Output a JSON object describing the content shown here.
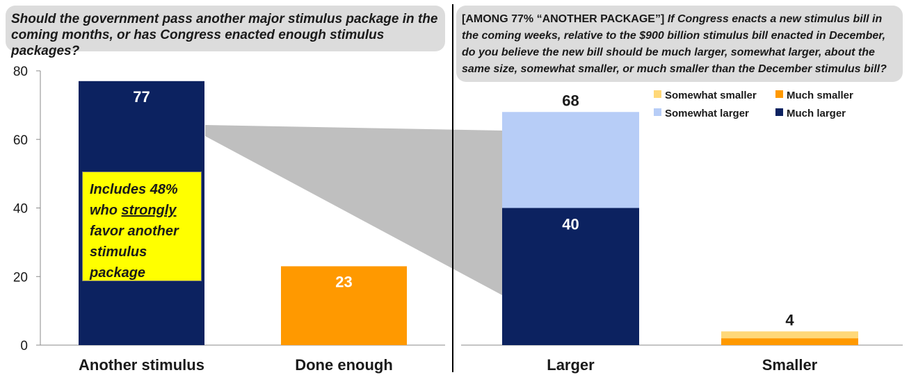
{
  "left_question": "Should the government pass another major stimulus package in the coming months, or has Congress enacted enough stimulus packages?",
  "right_question_prefix": "[AMONG 77% “ANOTHER PACKAGE”]",
  "right_question": "If Congress enacts a new stimulus bill in the coming weeks,  relative to the $900 billion stimulus bill enacted in December, do you believe the new bill should be much larger, somewhat larger, about the same size, somewhat smaller, or much smaller than the December stimulus bill?",
  "callout": {
    "before": "Includes 48% who ",
    "emph": "strongly",
    "after": " favor another stimulus package"
  },
  "colors": {
    "navy": "#0c2260",
    "orange": "#ff9900",
    "light_blue": "#b7cdf7",
    "light_yellow": "#ffd878",
    "funnel": "#bfbfbf"
  },
  "chart_data": [
    {
      "type": "bar",
      "categories": [
        "Another stimulus",
        "Done enough"
      ],
      "values": [
        77,
        23
      ],
      "labels": [
        "77",
        "23"
      ],
      "bar_colors": [
        "#0c2260",
        "#ff9900"
      ],
      "ylim": [
        0,
        80
      ],
      "yticks": [
        0,
        20,
        40,
        60,
        80
      ],
      "grid": false
    },
    {
      "type": "bar",
      "stacked": true,
      "categories": [
        "Larger",
        "Smaller"
      ],
      "series": [
        {
          "name": "Much larger",
          "color": "#0c2260",
          "values": [
            40,
            0
          ]
        },
        {
          "name": "Somewhat larger",
          "color": "#b7cdf7",
          "values": [
            28,
            0
          ]
        },
        {
          "name": "Much smaller",
          "color": "#ff9900",
          "values": [
            0,
            2
          ]
        },
        {
          "name": "Somewhat smaller",
          "color": "#ffd878",
          "values": [
            0,
            2
          ]
        }
      ],
      "inner_labels": [
        "40",
        ""
      ],
      "totals": [
        "68",
        "4"
      ],
      "ylim": [
        0,
        80
      ],
      "legend": {
        "placement": "top-right",
        "entries": [
          {
            "name": "Somewhat smaller",
            "color": "#ffd878"
          },
          {
            "name": "Much smaller",
            "color": "#ff9900"
          },
          {
            "name": "Somewhat larger",
            "color": "#b7cdf7"
          },
          {
            "name": "Much larger",
            "color": "#0c2260"
          }
        ]
      }
    }
  ]
}
